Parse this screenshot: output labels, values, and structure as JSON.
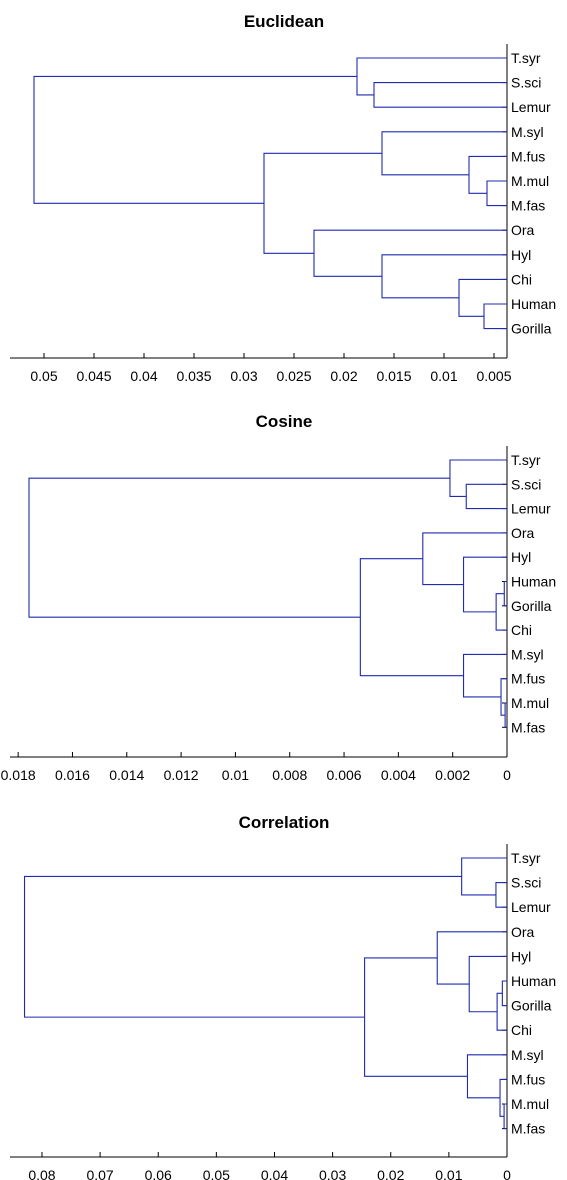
{
  "chart_data": [
    {
      "type": "dendrogram",
      "title": "Euclidean",
      "leaves": [
        "T.syr",
        "S.sci",
        "Lemur",
        "M.syl",
        "M.fus",
        "M.mul",
        "M.fas",
        "Ora",
        "Hyl",
        "Chi",
        "Human",
        "Gorilla"
      ],
      "merges": [
        {
          "a": "L10",
          "b": "L11",
          "h": 0.006
        },
        {
          "a": "L9",
          "b": "N0",
          "h": 0.0085
        },
        {
          "a": "L8",
          "b": "N1",
          "h": 0.0162
        },
        {
          "a": "L7",
          "b": "N2",
          "h": 0.023
        },
        {
          "a": "L5",
          "b": "L6",
          "h": 0.0057
        },
        {
          "a": "L4",
          "b": "N4",
          "h": 0.0075
        },
        {
          "a": "L3",
          "b": "N5",
          "h": 0.0162
        },
        {
          "a": "N6",
          "b": "N3",
          "h": 0.028
        },
        {
          "a": "L1",
          "b": "L2",
          "h": 0.017
        },
        {
          "a": "L0",
          "b": "N8",
          "h": 0.0187
        },
        {
          "a": "N9",
          "b": "N7",
          "h": 0.051
        }
      ],
      "xlim": [
        0.0037,
        0.0534
      ],
      "xticks": [
        0.05,
        0.045,
        0.04,
        0.035,
        0.03,
        0.025,
        0.02,
        0.015,
        0.01,
        0.005
      ],
      "xticklabels": [
        "0.05",
        "0.045",
        "0.04",
        "0.035",
        "0.03",
        "0.025",
        "0.02",
        "0.015",
        "0.01",
        "0.005"
      ]
    },
    {
      "type": "dendrogram",
      "title": "Cosine",
      "leaves": [
        "T.syr",
        "S.sci",
        "Lemur",
        "Ora",
        "Hyl",
        "Human",
        "Gorilla",
        "Chi",
        "M.syl",
        "M.fus",
        "M.mul",
        "M.fas"
      ],
      "merges": [
        {
          "a": "L5",
          "b": "L6",
          "h": 0.0001
        },
        {
          "a": "N0",
          "b": "L7",
          "h": 0.0004
        },
        {
          "a": "L4",
          "b": "N1",
          "h": 0.0016
        },
        {
          "a": "L3",
          "b": "N2",
          "h": 0.0031
        },
        {
          "a": "L10",
          "b": "L11",
          "h": 7e-05
        },
        {
          "a": "L9",
          "b": "N4",
          "h": 0.00022
        },
        {
          "a": "L8",
          "b": "N5",
          "h": 0.0016
        },
        {
          "a": "N3",
          "b": "N6",
          "h": 0.0054
        },
        {
          "a": "L1",
          "b": "L2",
          "h": 0.0015
        },
        {
          "a": "L0",
          "b": "N8",
          "h": 0.0021
        },
        {
          "a": "N9",
          "b": "N7",
          "h": 0.0176
        }
      ],
      "xlim": [
        0,
        0.0183
      ],
      "xticks": [
        0.018,
        0.016,
        0.014,
        0.012,
        0.01,
        0.008,
        0.006,
        0.004,
        0.002,
        0
      ],
      "xticklabels": [
        "0.018",
        "0.016",
        "0.014",
        "0.012",
        "0.01",
        "0.008",
        "0.006",
        "0.004",
        "0.002",
        "0"
      ]
    },
    {
      "type": "dendrogram",
      "title": "Correlation",
      "leaves": [
        "T.syr",
        "S.sci",
        "Lemur",
        "Ora",
        "Hyl",
        "Human",
        "Gorilla",
        "Chi",
        "M.syl",
        "M.fus",
        "M.mul",
        "M.fas"
      ],
      "merges": [
        {
          "a": "L5",
          "b": "L6",
          "h": 0.0008
        },
        {
          "a": "N0",
          "b": "L7",
          "h": 0.0017
        },
        {
          "a": "L4",
          "b": "N1",
          "h": 0.0065
        },
        {
          "a": "L3",
          "b": "N2",
          "h": 0.012
        },
        {
          "a": "L10",
          "b": "L11",
          "h": 0.0005
        },
        {
          "a": "L9",
          "b": "N4",
          "h": 0.0012
        },
        {
          "a": "L8",
          "b": "N5",
          "h": 0.0068
        },
        {
          "a": "N3",
          "b": "N6",
          "h": 0.0245
        },
        {
          "a": "L1",
          "b": "L2",
          "h": 0.0019
        },
        {
          "a": "L0",
          "b": "N8",
          "h": 0.0078
        },
        {
          "a": "N9",
          "b": "N7",
          "h": 0.083
        }
      ],
      "xlim": [
        0,
        0.0855
      ],
      "xticks": [
        0.08,
        0.07,
        0.06,
        0.05,
        0.04,
        0.03,
        0.02,
        0.01,
        0
      ],
      "xticklabels": [
        "0.08",
        "0.07",
        "0.06",
        "0.05",
        "0.04",
        "0.03",
        "0.02",
        "0.01",
        "0"
      ]
    }
  ],
  "colors": {
    "link": "#1f2bb0",
    "axis": "#000000"
  }
}
